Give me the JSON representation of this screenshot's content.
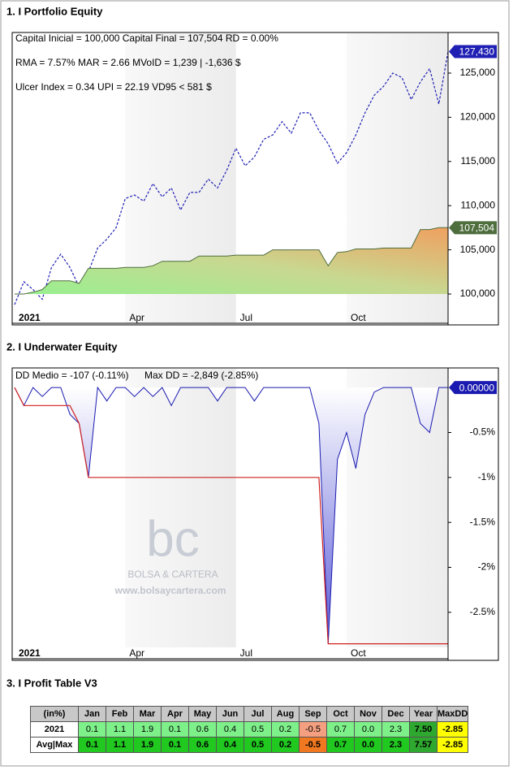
{
  "chart_data": [
    {
      "type": "line",
      "title": "1. I Portfolio Equity",
      "annotations": [
        "Capital Inicial = 100,000  Capital Final = 107,504   RD = 0.00%",
        "RMA = 7.57%   MAR = 2.66   MVoID = 1,239 | -1,636 $",
        "Ulcer Index = 0.34   UPI = 22.19   VD95 < 581 $"
      ],
      "categories": [
        "2021",
        null,
        null,
        null,
        null,
        null,
        null,
        null,
        null,
        null,
        null,
        null,
        "Apr",
        null,
        null,
        null,
        null,
        null,
        null,
        null,
        null,
        null,
        null,
        null,
        "Jul",
        null,
        null,
        null,
        null,
        null,
        null,
        null,
        null,
        null,
        null,
        null,
        "Oct",
        null,
        null,
        null,
        null,
        null,
        null,
        null,
        null,
        null,
        null,
        null
      ],
      "series": [
        {
          "style": "dashed",
          "color": "#1f1fb4",
          "values": [
            98800,
            101400,
            100500,
            99400,
            103000,
            104500,
            103000,
            100800,
            102500,
            105200,
            106200,
            107500,
            110800,
            111200,
            110500,
            112500,
            111000,
            112000,
            109500,
            111500,
            111500,
            113000,
            112000,
            114000,
            116500,
            114500,
            115500,
            117500,
            118000,
            119500,
            118200,
            120500,
            120500,
            118500,
            117000,
            114800,
            116000,
            118000,
            120500,
            122500,
            123500,
            125000,
            124500,
            122000,
            124000,
            125500,
            121500,
            127430
          ],
          "value_labels": [
            null,
            null,
            null,
            null,
            null,
            null,
            null,
            null,
            null,
            null,
            null,
            null,
            null,
            null,
            null,
            null,
            null,
            null,
            null,
            null,
            null,
            null,
            null,
            null,
            null,
            null,
            null,
            null,
            null,
            null,
            null,
            null,
            null,
            null,
            null,
            null,
            null,
            null,
            null,
            null,
            null,
            null,
            null,
            null,
            null,
            null,
            null,
            "127,430"
          ]
        },
        {
          "style": "area",
          "color": "#4e6e3e",
          "values": [
            100000,
            100000,
            100200,
            100500,
            101500,
            101500,
            101500,
            101200,
            102900,
            102900,
            102900,
            102900,
            103000,
            103000,
            103000,
            103200,
            103700,
            103700,
            103700,
            103700,
            104300,
            104300,
            104300,
            104300,
            104400,
            104400,
            104400,
            104400,
            105000,
            105000,
            105000,
            105000,
            105000,
            105000,
            103200,
            104700,
            104800,
            105100,
            105100,
            105100,
            105200,
            105200,
            105200,
            105200,
            107300,
            107300,
            107504,
            107504
          ],
          "value_labels": [
            null,
            null,
            null,
            null,
            null,
            null,
            null,
            null,
            null,
            null,
            null,
            null,
            null,
            null,
            null,
            null,
            null,
            null,
            null,
            null,
            null,
            null,
            null,
            null,
            null,
            null,
            null,
            null,
            null,
            null,
            null,
            null,
            null,
            null,
            null,
            null,
            null,
            null,
            null,
            null,
            null,
            null,
            null,
            null,
            null,
            null,
            null,
            "107,504"
          ]
        }
      ],
      "ylim": [
        96690,
        129410
      ],
      "yticks": [
        {
          "value": 100000,
          "label": "100,000"
        },
        {
          "value": 105000,
          "label": "105,000"
        },
        {
          "value": 110000,
          "label": "110,000"
        },
        {
          "value": 115000,
          "label": "115,000"
        },
        {
          "value": 120000,
          "label": "120,000"
        },
        {
          "value": 125000,
          "label": "125,000"
        }
      ]
    },
    {
      "type": "line",
      "title": "2. I Underwater Equity",
      "annotations": [
        "DD Medio = -107 (-0.11%)",
        "Max DD = -2,849 (-2.85%)"
      ],
      "watermark": [
        "bc",
        "BOLSA & CARTERA",
        "www.bolsaycartera.com"
      ],
      "categories": [
        "2021",
        null,
        null,
        null,
        null,
        null,
        null,
        null,
        null,
        null,
        null,
        null,
        "Apr",
        null,
        null,
        null,
        null,
        null,
        null,
        null,
        null,
        null,
        null,
        null,
        "Jul",
        null,
        null,
        null,
        null,
        null,
        null,
        null,
        null,
        null,
        null,
        null,
        "Oct",
        null,
        null,
        null,
        null,
        null,
        null,
        null,
        null,
        null,
        null,
        null
      ],
      "series": [
        {
          "style": "area",
          "color": "#1a1ab0",
          "values": [
            0,
            -0.2,
            0,
            -0.1,
            0,
            0,
            -0.3,
            -0.4,
            -1.0,
            0,
            -0.15,
            0,
            0,
            -0.1,
            0,
            -0.1,
            0,
            -0.2,
            0,
            0,
            0,
            0,
            -0.15,
            0,
            0,
            0,
            -0.15,
            0,
            0,
            0,
            0,
            0,
            0,
            -0.4,
            -2.85,
            -0.8,
            -0.5,
            -0.9,
            -0.3,
            -0.05,
            0,
            0,
            0,
            0,
            -0.4,
            -0.5,
            0,
            0
          ],
          "value_labels": [
            null,
            null,
            null,
            null,
            null,
            null,
            null,
            null,
            null,
            null,
            null,
            null,
            null,
            null,
            null,
            null,
            null,
            null,
            null,
            null,
            null,
            null,
            null,
            null,
            null,
            null,
            null,
            null,
            null,
            null,
            null,
            null,
            null,
            null,
            null,
            null,
            null,
            null,
            null,
            null,
            null,
            null,
            null,
            null,
            null,
            null,
            null,
            "0.00000"
          ]
        },
        {
          "style": "line",
          "color": "#d02020",
          "values": [
            0,
            -0.2,
            -0.2,
            -0.2,
            -0.2,
            -0.2,
            -0.2,
            -0.4,
            -1.0,
            -1.0,
            -1.0,
            -1.0,
            -1.0,
            -1.0,
            -1.0,
            -1.0,
            -1.0,
            -1.0,
            -1.0,
            -1.0,
            -1.0,
            -1.0,
            -1.0,
            -1.0,
            -1.0,
            -1.0,
            -1.0,
            -1.0,
            -1.0,
            -1.0,
            -1.0,
            -1.0,
            -1.0,
            -1.0,
            -2.85,
            -2.85,
            -2.85,
            -2.85,
            -2.85,
            -2.85,
            -2.85,
            -2.85,
            -2.85,
            -2.85,
            -2.85,
            -2.85,
            -2.85,
            -2.85
          ]
        }
      ],
      "ylim": [
        -2.89,
        0.2
      ],
      "yticks": [
        {
          "value": -0.5,
          "label": "-0.5%"
        },
        {
          "value": -1,
          "label": "-1%"
        },
        {
          "value": -1.5,
          "label": "-1.5%"
        },
        {
          "value": -2,
          "label": "-2%"
        },
        {
          "value": -2.5,
          "label": "-2.5%"
        }
      ]
    }
  ],
  "table": {
    "title": "3. I Profit Table V3",
    "header": [
      "(in%)",
      "Jan",
      "Feb",
      "Mar",
      "Apr",
      "May",
      "Jun",
      "Jul",
      "Aug",
      "Sep",
      "Oct",
      "Nov",
      "Dec",
      "Year",
      "MaxDD"
    ],
    "rows": [
      [
        "2021",
        "0.1",
        "1.1",
        "1.9",
        "0.1",
        "0.6",
        "0.4",
        "0.5",
        "0.2",
        "-0.5",
        "0.7",
        "0.0",
        "2.3",
        "7.50",
        "-2.85"
      ],
      [
        "Avg|Max",
        "0.1",
        "1.1",
        "1.9",
        "0.1",
        "0.6",
        "0.4",
        "0.5",
        "0.2",
        "-0.5",
        "0.7",
        "0.0",
        "2.3",
        "7.57",
        "-2.85"
      ]
    ]
  }
}
